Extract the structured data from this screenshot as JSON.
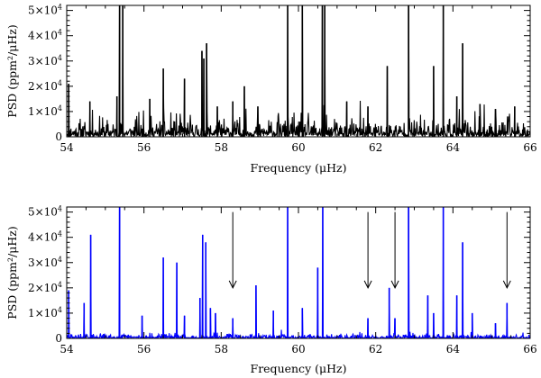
{
  "chart_data": [
    {
      "type": "line",
      "panel": "top",
      "xlabel": "Frequency (μHz)",
      "ylabel": "PSD (ppm²/μHz)",
      "xlim": [
        54,
        66
      ],
      "ylim": [
        0,
        52000
      ],
      "x_ticks": [
        54,
        56,
        58,
        60,
        62,
        64,
        66
      ],
      "x_tick_labels": [
        "54",
        "56",
        "58",
        "60",
        "62",
        "64",
        "66"
      ],
      "y_ticks": [
        0,
        10000,
        20000,
        30000,
        40000,
        50000
      ],
      "y_tick_labels": [
        {
          "base": "0",
          "exp": ""
        },
        {
          "base": "1×10",
          "exp": "4"
        },
        {
          "base": "2×10",
          "exp": "4"
        },
        {
          "base": "3×10",
          "exp": "4"
        },
        {
          "base": "4×10",
          "exp": "4"
        },
        {
          "base": "5×10",
          "exp": "4"
        }
      ],
      "series": [
        {
          "color": "#000000",
          "noise_level": 3500,
          "peaks": [
            {
              "x": 54.05,
              "y": 21000
            },
            {
              "x": 54.6,
              "y": 14000
            },
            {
              "x": 55.3,
              "y": 16000
            },
            {
              "x": 55.37,
              "y": 52000
            },
            {
              "x": 55.45,
              "y": 52000
            },
            {
              "x": 56.15,
              "y": 15000
            },
            {
              "x": 56.5,
              "y": 27000
            },
            {
              "x": 57.05,
              "y": 23000
            },
            {
              "x": 57.5,
              "y": 34000
            },
            {
              "x": 57.55,
              "y": 31000
            },
            {
              "x": 57.62,
              "y": 37000
            },
            {
              "x": 57.9,
              "y": 12000
            },
            {
              "x": 58.3,
              "y": 14000
            },
            {
              "x": 58.6,
              "y": 20000
            },
            {
              "x": 58.95,
              "y": 12000
            },
            {
              "x": 59.72,
              "y": 52000
            },
            {
              "x": 60.1,
              "y": 52000
            },
            {
              "x": 60.62,
              "y": 52000
            },
            {
              "x": 60.68,
              "y": 52000
            },
            {
              "x": 61.25,
              "y": 14000
            },
            {
              "x": 61.8,
              "y": 12000
            },
            {
              "x": 62.3,
              "y": 28000
            },
            {
              "x": 62.85,
              "y": 52000
            },
            {
              "x": 63.5,
              "y": 28000
            },
            {
              "x": 63.75,
              "y": 52000
            },
            {
              "x": 64.1,
              "y": 16000
            },
            {
              "x": 64.25,
              "y": 37000
            },
            {
              "x": 64.7,
              "y": 13000
            },
            {
              "x": 65.1,
              "y": 11000
            },
            {
              "x": 65.6,
              "y": 12000
            }
          ]
        }
      ]
    },
    {
      "type": "line",
      "panel": "bottom",
      "xlabel": "Frequency (μHz)",
      "ylabel": "PSD (ppm²/μHz)",
      "xlim": [
        54,
        66
      ],
      "ylim": [
        0,
        52000
      ],
      "x_ticks": [
        54,
        56,
        58,
        60,
        62,
        64,
        66
      ],
      "x_tick_labels": [
        "54",
        "56",
        "58",
        "60",
        "62",
        "64",
        "66"
      ],
      "y_ticks": [
        0,
        10000,
        20000,
        30000,
        40000,
        50000
      ],
      "y_tick_labels": [
        {
          "base": "0",
          "exp": ""
        },
        {
          "base": "1×10",
          "exp": "4"
        },
        {
          "base": "2×10",
          "exp": "4"
        },
        {
          "base": "3×10",
          "exp": "4"
        },
        {
          "base": "4×10",
          "exp": "4"
        },
        {
          "base": "5×10",
          "exp": "4"
        }
      ],
      "series": [
        {
          "color": "#0000ff",
          "noise_level": 900,
          "peaks": [
            {
              "x": 54.05,
              "y": 19000
            },
            {
              "x": 54.45,
              "y": 14000
            },
            {
              "x": 54.62,
              "y": 41000
            },
            {
              "x": 55.37,
              "y": 52000
            },
            {
              "x": 55.95,
              "y": 9000
            },
            {
              "x": 56.5,
              "y": 32000
            },
            {
              "x": 56.85,
              "y": 30000
            },
            {
              "x": 57.05,
              "y": 9000
            },
            {
              "x": 57.45,
              "y": 16000
            },
            {
              "x": 57.52,
              "y": 41000
            },
            {
              "x": 57.6,
              "y": 38000
            },
            {
              "x": 57.72,
              "y": 12000
            },
            {
              "x": 57.85,
              "y": 10000
            },
            {
              "x": 58.3,
              "y": 8000
            },
            {
              "x": 58.9,
              "y": 21000
            },
            {
              "x": 59.35,
              "y": 11000
            },
            {
              "x": 59.72,
              "y": 52000
            },
            {
              "x": 60.1,
              "y": 12000
            },
            {
              "x": 60.5,
              "y": 28000
            },
            {
              "x": 60.63,
              "y": 52000
            },
            {
              "x": 61.8,
              "y": 8000
            },
            {
              "x": 62.35,
              "y": 20000
            },
            {
              "x": 62.5,
              "y": 8000
            },
            {
              "x": 62.85,
              "y": 52000
            },
            {
              "x": 63.35,
              "y": 17000
            },
            {
              "x": 63.5,
              "y": 10000
            },
            {
              "x": 63.75,
              "y": 52000
            },
            {
              "x": 64.1,
              "y": 17000
            },
            {
              "x": 64.25,
              "y": 38000
            },
            {
              "x": 64.5,
              "y": 10000
            },
            {
              "x": 65.1,
              "y": 6000
            },
            {
              "x": 65.4,
              "y": 14000
            }
          ]
        }
      ],
      "annotations": [
        {
          "type": "arrow",
          "x": 58.3,
          "y_from": 50000,
          "y_to": 20000
        },
        {
          "type": "arrow",
          "x": 61.8,
          "y_from": 50000,
          "y_to": 20000
        },
        {
          "type": "arrow",
          "x": 62.5,
          "y_from": 50000,
          "y_to": 20000
        },
        {
          "type": "arrow",
          "x": 65.4,
          "y_from": 50000,
          "y_to": 20000
        }
      ]
    }
  ]
}
